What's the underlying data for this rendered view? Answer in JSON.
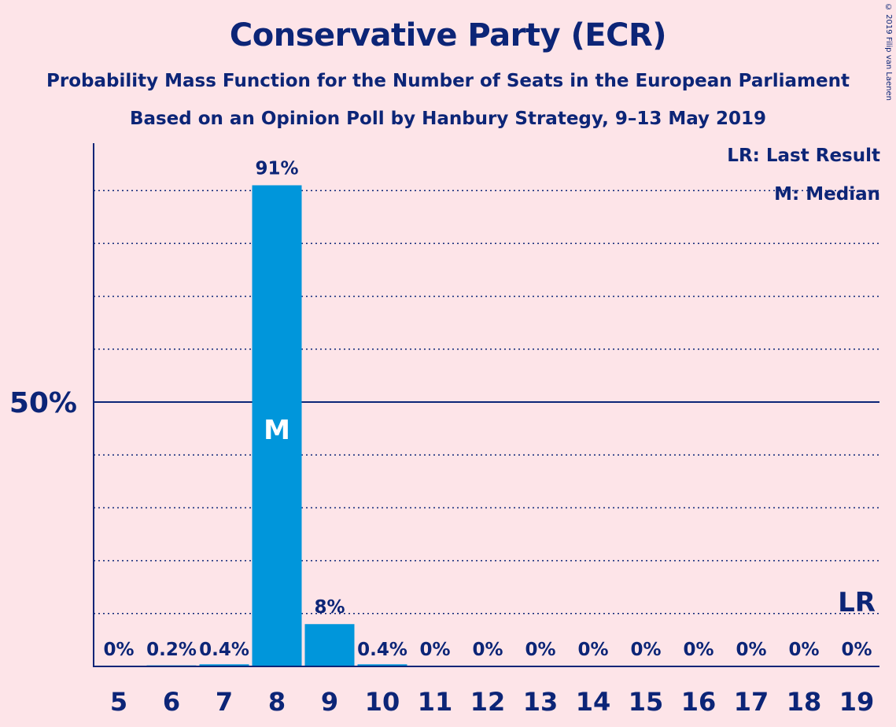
{
  "header": {
    "title": "Conservative Party (ECR)",
    "subtitle": "Probability Mass Function for the Number of Seats in the European Parliament",
    "poll_line": "Based on an Opinion Poll by Hanbury Strategy, 9–13 May 2019"
  },
  "copyright": "© 2019 Filip van Laenen",
  "legend": {
    "last_result": "LR: Last Result",
    "median": "M: Median"
  },
  "colors": {
    "background": "#fde4e8",
    "bar": "#0096db",
    "text": "#0c2577"
  },
  "chart_data": {
    "type": "bar",
    "categories": [
      "5",
      "6",
      "7",
      "8",
      "9",
      "10",
      "11",
      "12",
      "13",
      "14",
      "15",
      "16",
      "17",
      "18",
      "19"
    ],
    "values": [
      0,
      0.2,
      0.4,
      91,
      8,
      0.4,
      0,
      0,
      0,
      0,
      0,
      0,
      0,
      0,
      0
    ],
    "value_labels": [
      "0%",
      "0.2%",
      "0.4%",
      "91%",
      "8%",
      "0.4%",
      "0%",
      "0%",
      "0%",
      "0%",
      "0%",
      "0%",
      "0%",
      "0%",
      "0%"
    ],
    "ylim": [
      0,
      100
    ],
    "y_tick_label": "50%",
    "y_tick_value": 50,
    "gridlines": [
      10,
      20,
      30,
      40,
      60,
      70,
      80,
      90
    ],
    "median_category": "8",
    "median_label": "M",
    "last_result_category": "19",
    "last_result_label": "LR"
  }
}
